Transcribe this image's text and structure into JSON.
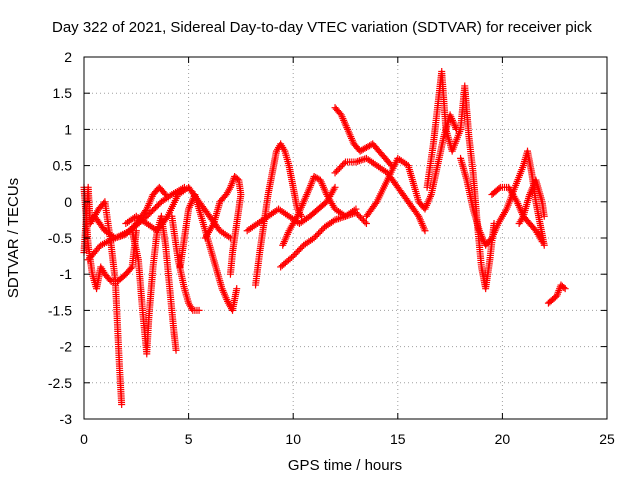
{
  "chart_data": {
    "type": "scatter",
    "title": "Day 322 of 2021, Sidereal Day-to-day VTEC variation (SDTVAR) for receiver pick",
    "xlabel": "GPS time / hours",
    "ylabel": "SDTVAR / TECUs",
    "xlim": [
      0,
      25
    ],
    "ylim": [
      -3,
      2
    ],
    "xticks": [
      "0",
      "5",
      "10",
      "15",
      "20",
      "25"
    ],
    "yticks": [
      "-3",
      "-2.5",
      "-2",
      "-1.5",
      "-1",
      "-0.5",
      "0",
      "0.5",
      "1",
      "1.5",
      "2"
    ],
    "grid": true,
    "marker": "+",
    "series_color": "#ff0000",
    "series": [
      {
        "points": [
          [
            0.0,
            -0.7
          ],
          [
            0.2,
            0.2
          ],
          [
            0.3,
            -0.3
          ],
          [
            0.5,
            -0.2
          ],
          [
            0.7,
            -0.1
          ],
          [
            1.0,
            0.0
          ],
          [
            1.3,
            -0.6
          ],
          [
            1.5,
            -1.1
          ],
          [
            1.6,
            -1.7
          ],
          [
            1.7,
            -2.3
          ],
          [
            1.8,
            -2.8
          ]
        ]
      },
      {
        "points": [
          [
            0.0,
            0.2
          ],
          [
            0.2,
            -0.6
          ],
          [
            0.4,
            -1.0
          ],
          [
            0.6,
            -1.2
          ],
          [
            0.8,
            -0.9
          ],
          [
            1.0,
            -1.0
          ],
          [
            1.3,
            -1.1
          ],
          [
            1.6,
            -1.1
          ],
          [
            2.0,
            -1.0
          ],
          [
            2.3,
            -0.9
          ],
          [
            2.5,
            -0.4
          ]
        ]
      },
      {
        "points": [
          [
            2.3,
            -0.4
          ],
          [
            2.6,
            -0.8
          ],
          [
            2.8,
            -1.5
          ],
          [
            3.0,
            -2.1
          ],
          [
            3.1,
            -1.6
          ],
          [
            3.3,
            -0.9
          ],
          [
            3.5,
            -0.4
          ],
          [
            3.7,
            -0.2
          ],
          [
            3.9,
            -0.6
          ],
          [
            4.1,
            -1.2
          ],
          [
            4.3,
            -1.8
          ],
          [
            4.4,
            -2.05
          ]
        ]
      },
      {
        "points": [
          [
            2.0,
            -0.3
          ],
          [
            2.5,
            -0.2
          ],
          [
            3.0,
            -0.3
          ],
          [
            3.5,
            -0.4
          ],
          [
            4.0,
            -0.2
          ],
          [
            4.5,
            0.1
          ],
          [
            5.0,
            0.2
          ],
          [
            5.5,
            0.0
          ],
          [
            6.0,
            -0.2
          ],
          [
            6.5,
            -0.4
          ],
          [
            7.0,
            -0.5
          ]
        ]
      },
      {
        "points": [
          [
            0.2,
            -0.8
          ],
          [
            0.8,
            -0.6
          ],
          [
            1.5,
            -0.5
          ],
          [
            2.2,
            -0.4
          ],
          [
            3.0,
            -0.2
          ],
          [
            3.7,
            0.0
          ],
          [
            4.2,
            0.1
          ],
          [
            4.8,
            0.2
          ]
        ]
      },
      {
        "points": [
          [
            0.5,
            -0.2
          ],
          [
            1.0,
            -0.4
          ],
          [
            1.5,
            -0.5
          ],
          [
            2.0,
            -0.45
          ],
          [
            2.5,
            -0.3
          ],
          [
            3.0,
            -0.1
          ],
          [
            3.3,
            0.1
          ],
          [
            3.6,
            0.2
          ],
          [
            3.9,
            0.1
          ]
        ]
      },
      {
        "points": [
          [
            4.2,
            -0.2
          ],
          [
            4.5,
            -0.8
          ],
          [
            4.8,
            -1.2
          ],
          [
            5.0,
            -1.4
          ],
          [
            5.2,
            -1.5
          ],
          [
            5.5,
            -1.5
          ]
        ]
      },
      {
        "points": [
          [
            4.6,
            -0.9
          ],
          [
            4.8,
            -0.5
          ],
          [
            5.0,
            -0.1
          ],
          [
            5.3,
            0.1
          ],
          [
            5.6,
            -0.2
          ],
          [
            6.0,
            -0.6
          ],
          [
            6.3,
            -0.9
          ],
          [
            6.6,
            -1.2
          ],
          [
            6.9,
            -1.4
          ],
          [
            7.1,
            -1.5
          ],
          [
            7.3,
            -1.2
          ]
        ]
      },
      {
        "points": [
          [
            5.8,
            -0.5
          ],
          [
            6.2,
            -0.3
          ],
          [
            6.5,
            0.0
          ],
          [
            6.8,
            0.1
          ],
          [
            7.0,
            0.2
          ],
          [
            7.2,
            0.35
          ],
          [
            7.4,
            0.3
          ],
          [
            7.5,
            0.1
          ],
          [
            7.3,
            -0.3
          ],
          [
            7.1,
            -0.7
          ],
          [
            7.0,
            -1.0
          ]
        ]
      },
      {
        "points": [
          [
            8.2,
            -1.15
          ],
          [
            8.4,
            -0.7
          ],
          [
            8.6,
            -0.3
          ],
          [
            8.8,
            0.1
          ],
          [
            9.0,
            0.4
          ],
          [
            9.2,
            0.7
          ],
          [
            9.4,
            0.8
          ],
          [
            9.6,
            0.7
          ],
          [
            9.8,
            0.5
          ],
          [
            10.0,
            0.2
          ],
          [
            10.2,
            -0.1
          ],
          [
            10.4,
            -0.2
          ]
        ]
      },
      {
        "points": [
          [
            7.8,
            -0.4
          ],
          [
            8.3,
            -0.3
          ],
          [
            8.8,
            -0.2
          ],
          [
            9.3,
            -0.1
          ],
          [
            9.8,
            -0.2
          ],
          [
            10.3,
            -0.3
          ],
          [
            10.8,
            -0.2
          ],
          [
            11.2,
            -0.1
          ],
          [
            11.6,
            0.0
          ],
          [
            12.0,
            0.2
          ]
        ]
      },
      {
        "points": [
          [
            9.5,
            -0.6
          ],
          [
            9.8,
            -0.4
          ],
          [
            10.2,
            -0.2
          ],
          [
            10.5,
            0.0
          ],
          [
            10.8,
            0.2
          ],
          [
            11.0,
            0.35
          ],
          [
            11.3,
            0.3
          ],
          [
            11.6,
            0.1
          ],
          [
            12.0,
            -0.1
          ],
          [
            12.5,
            -0.2
          ],
          [
            13.0,
            -0.1
          ]
        ]
      },
      {
        "points": [
          [
            9.4,
            -0.9
          ],
          [
            10.0,
            -0.75
          ],
          [
            10.5,
            -0.6
          ],
          [
            11.0,
            -0.5
          ],
          [
            11.5,
            -0.35
          ],
          [
            12.0,
            -0.25
          ],
          [
            12.5,
            -0.2
          ],
          [
            13.0,
            -0.15
          ],
          [
            13.5,
            -0.3
          ]
        ]
      },
      {
        "points": [
          [
            12.0,
            1.3
          ],
          [
            12.3,
            1.2
          ],
          [
            12.6,
            1.0
          ],
          [
            12.9,
            0.8
          ],
          [
            13.2,
            0.7
          ],
          [
            13.5,
            0.75
          ],
          [
            13.8,
            0.8
          ],
          [
            14.1,
            0.7
          ],
          [
            14.4,
            0.6
          ],
          [
            14.7,
            0.5
          ]
        ]
      },
      {
        "points": [
          [
            12.0,
            0.4
          ],
          [
            12.5,
            0.55
          ],
          [
            13.0,
            0.55
          ],
          [
            13.5,
            0.6
          ],
          [
            14.0,
            0.5
          ],
          [
            14.5,
            0.4
          ],
          [
            15.0,
            0.2
          ],
          [
            15.5,
            0.0
          ],
          [
            16.0,
            -0.2
          ],
          [
            16.3,
            -0.4
          ]
        ]
      },
      {
        "points": [
          [
            13.5,
            -0.2
          ],
          [
            14.0,
            0.0
          ],
          [
            14.5,
            0.3
          ],
          [
            15.0,
            0.6
          ],
          [
            15.5,
            0.5
          ],
          [
            15.8,
            0.2
          ],
          [
            16.0,
            0.0
          ],
          [
            16.3,
            -0.1
          ],
          [
            16.6,
            0.1
          ],
          [
            16.9,
            0.5
          ],
          [
            17.2,
            0.9
          ],
          [
            17.5,
            1.2
          ],
          [
            17.8,
            1.0
          ]
        ]
      },
      {
        "points": [
          [
            16.4,
            0.2
          ],
          [
            16.7,
            0.8
          ],
          [
            16.9,
            1.3
          ],
          [
            17.1,
            1.8
          ],
          [
            17.3,
            1.0
          ],
          [
            17.6,
            0.7
          ],
          [
            18.0,
            1.0
          ],
          [
            18.2,
            1.6
          ],
          [
            18.4,
            0.9
          ],
          [
            18.6,
            0.4
          ],
          [
            18.8,
            -0.3
          ],
          [
            19.0,
            -0.9
          ],
          [
            19.2,
            -1.2
          ],
          [
            19.4,
            -0.8
          ],
          [
            19.6,
            -0.3
          ]
        ]
      },
      {
        "points": [
          [
            18.0,
            0.6
          ],
          [
            18.3,
            0.3
          ],
          [
            18.6,
            -0.1
          ],
          [
            18.9,
            -0.4
          ],
          [
            19.2,
            -0.6
          ],
          [
            19.5,
            -0.5
          ],
          [
            19.8,
            -0.3
          ],
          [
            20.2,
            -0.1
          ],
          [
            20.6,
            0.2
          ],
          [
            21.0,
            0.5
          ],
          [
            21.2,
            0.7
          ],
          [
            21.4,
            0.4
          ],
          [
            21.6,
            0.0
          ],
          [
            21.8,
            -0.3
          ],
          [
            22.0,
            -0.6
          ]
        ]
      },
      {
        "points": [
          [
            19.5,
            0.1
          ],
          [
            19.9,
            0.2
          ],
          [
            20.3,
            0.2
          ],
          [
            20.7,
            0.0
          ],
          [
            21.0,
            -0.2
          ],
          [
            21.3,
            0.1
          ],
          [
            21.6,
            0.3
          ],
          [
            21.9,
            0.0
          ],
          [
            22.0,
            -0.2
          ]
        ]
      },
      {
        "points": [
          [
            20.8,
            -0.3
          ],
          [
            21.0,
            -0.2
          ],
          [
            21.3,
            -0.3
          ],
          [
            21.6,
            -0.4
          ],
          [
            21.9,
            -0.55
          ]
        ]
      },
      {
        "points": [
          [
            22.2,
            -1.4
          ],
          [
            22.4,
            -1.35
          ],
          [
            22.6,
            -1.3
          ],
          [
            22.8,
            -1.15
          ],
          [
            23.0,
            -1.2
          ]
        ]
      }
    ]
  }
}
